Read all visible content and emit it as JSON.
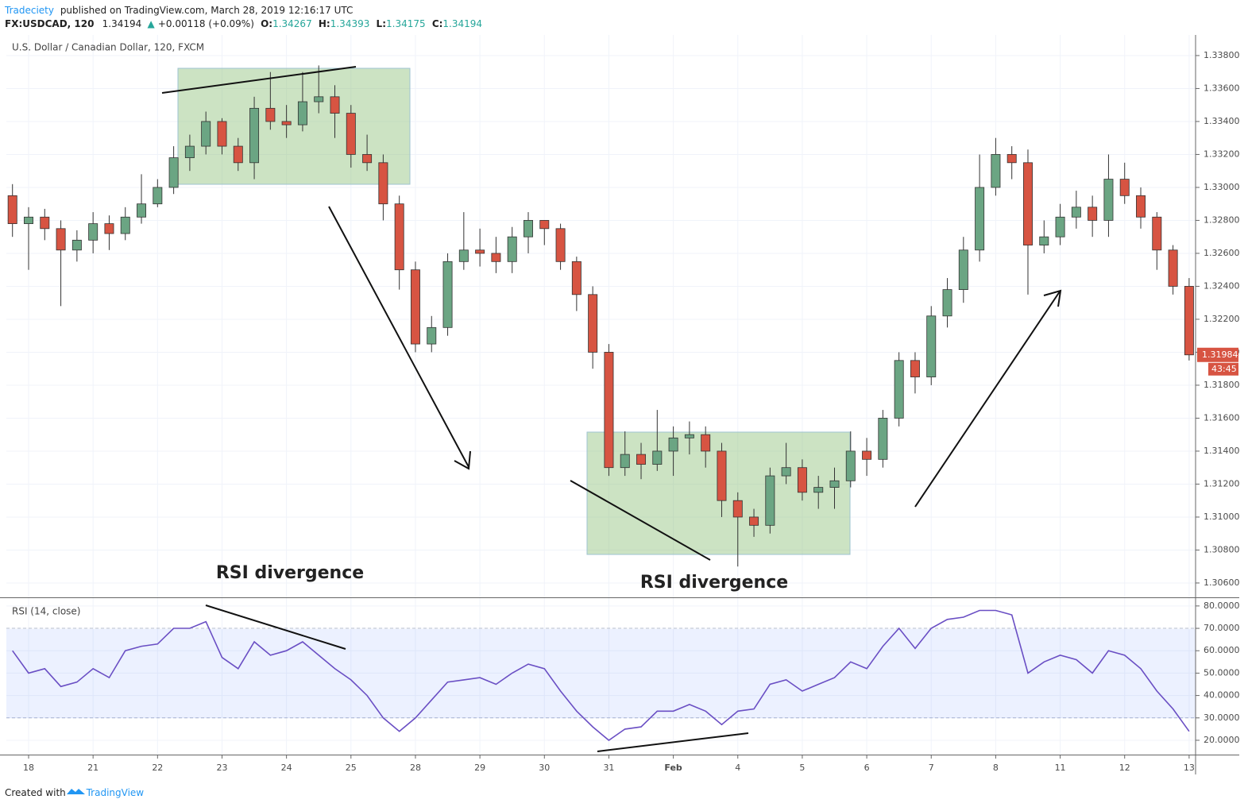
{
  "header": {
    "author": "Tradeciety",
    "published": "published on TradingView.com, March 28, 2019 12:16:17 UTC",
    "symbol": "FX:USDCAD, 120",
    "price": "1.34194",
    "arrow": "▲",
    "change": "+0.00118 (+0.09%)",
    "o_label": "O:",
    "o": "1.34267",
    "h_label": "H:",
    "h": "1.34393",
    "l_label": "L:",
    "l": "1.34175",
    "c_label": "C:",
    "c": "1.34194"
  },
  "footer": {
    "created": "Created with",
    "brand": "TradingView"
  },
  "chart_data": [
    {
      "type": "candlestick",
      "title": "U.S. Dollar / Canadian Dollar, 120, FXCM",
      "up_color": "#6ba583",
      "down_color": "#d75442",
      "grid": true,
      "annotations": [
        "RSI divergence",
        "RSI divergence"
      ],
      "countdown": "43:45",
      "open": [
        1.3295,
        1.3278,
        1.3282,
        1.3275,
        1.3262,
        1.3268,
        1.3278,
        1.3272,
        1.3282,
        1.329,
        1.33,
        1.3318,
        1.3325,
        1.334,
        1.3325,
        1.3315,
        1.3348,
        1.334,
        1.3338,
        1.3352,
        1.3355,
        1.3345,
        1.332,
        1.3315,
        1.329,
        1.325,
        1.3205,
        1.3215,
        1.3255,
        1.3262,
        1.326,
        1.3255,
        1.327,
        1.328,
        1.3275,
        1.3255,
        1.3235,
        1.32,
        1.313,
        1.3138,
        1.3132,
        1.314,
        1.3148,
        1.315,
        1.314,
        1.311,
        1.31,
        1.3095,
        1.3125,
        1.313,
        1.3115,
        1.3118,
        1.3122,
        1.314,
        1.3135,
        1.316,
        1.3195,
        1.3185,
        1.3222,
        1.3238,
        1.3262,
        1.33,
        1.332,
        1.3315,
        1.3265,
        1.327,
        1.3282,
        1.3288,
        1.328,
        1.3305,
        1.3295,
        1.3282,
        1.3262,
        1.324
      ],
      "high": [
        1.3302,
        1.3288,
        1.3287,
        1.328,
        1.3274,
        1.3285,
        1.3283,
        1.3288,
        1.3308,
        1.3305,
        1.3325,
        1.3332,
        1.3346,
        1.3342,
        1.333,
        1.3355,
        1.337,
        1.335,
        1.337,
        1.3374,
        1.3362,
        1.335,
        1.3332,
        1.332,
        1.3295,
        1.3255,
        1.3222,
        1.326,
        1.3285,
        1.3275,
        1.327,
        1.3276,
        1.3285,
        1.328,
        1.3278,
        1.3258,
        1.324,
        1.3205,
        1.3152,
        1.3145,
        1.3165,
        1.3155,
        1.3158,
        1.3155,
        1.3145,
        1.3115,
        1.3105,
        1.313,
        1.3145,
        1.3135,
        1.3125,
        1.313,
        1.3152,
        1.3148,
        1.3165,
        1.32,
        1.32,
        1.3228,
        1.3245,
        1.327,
        1.332,
        1.333,
        1.3325,
        1.3323,
        1.328,
        1.329,
        1.3298,
        1.3295,
        1.332,
        1.3315,
        1.33,
        1.3285,
        1.3265,
        1.3245
      ],
      "low": [
        1.327,
        1.325,
        1.3268,
        1.3228,
        1.3255,
        1.326,
        1.3262,
        1.3268,
        1.3278,
        1.3288,
        1.3296,
        1.331,
        1.332,
        1.332,
        1.331,
        1.3305,
        1.3335,
        1.333,
        1.3334,
        1.3345,
        1.333,
        1.3312,
        1.331,
        1.328,
        1.3238,
        1.32,
        1.32,
        1.321,
        1.325,
        1.3252,
        1.3248,
        1.3248,
        1.326,
        1.3265,
        1.325,
        1.3225,
        1.319,
        1.3125,
        1.3125,
        1.3123,
        1.3128,
        1.3125,
        1.3138,
        1.313,
        1.31,
        1.307,
        1.3088,
        1.309,
        1.312,
        1.311,
        1.3105,
        1.3105,
        1.3118,
        1.3125,
        1.313,
        1.3155,
        1.3175,
        1.318,
        1.3215,
        1.323,
        1.3255,
        1.3295,
        1.3305,
        1.3235,
        1.326,
        1.3265,
        1.3275,
        1.327,
        1.327,
        1.329,
        1.3275,
        1.325,
        1.3235,
        1.3195
      ],
      "close": [
        1.3278,
        1.3282,
        1.3275,
        1.3262,
        1.3268,
        1.3278,
        1.3272,
        1.3282,
        1.329,
        1.33,
        1.3318,
        1.3325,
        1.334,
        1.3325,
        1.3315,
        1.3348,
        1.334,
        1.3338,
        1.3352,
        1.3355,
        1.3345,
        1.332,
        1.3315,
        1.329,
        1.325,
        1.3205,
        1.3215,
        1.3255,
        1.3262,
        1.326,
        1.3255,
        1.327,
        1.328,
        1.3275,
        1.3255,
        1.3235,
        1.32,
        1.313,
        1.3138,
        1.3132,
        1.314,
        1.3148,
        1.315,
        1.314,
        1.311,
        1.31,
        1.3095,
        1.3125,
        1.313,
        1.3115,
        1.3118,
        1.3122,
        1.314,
        1.3135,
        1.316,
        1.3195,
        1.3185,
        1.3222,
        1.3238,
        1.3262,
        1.33,
        1.332,
        1.3315,
        1.3265,
        1.327,
        1.3282,
        1.3288,
        1.328,
        1.3305,
        1.3295,
        1.3282,
        1.3262,
        1.324,
        1.31984
      ],
      "xlim": [
        -0.38,
        73.4
      ],
      "xticks": [
        {
          "value": 1,
          "label": "18"
        },
        {
          "value": 5,
          "label": "21"
        },
        {
          "value": 9,
          "label": "22"
        },
        {
          "value": 13,
          "label": "23"
        },
        {
          "value": 17,
          "label": "24"
        },
        {
          "value": 21,
          "label": "25"
        },
        {
          "value": 25,
          "label": "28"
        },
        {
          "value": 29,
          "label": "29"
        },
        {
          "value": 33,
          "label": "30"
        },
        {
          "value": 37,
          "label": "31"
        },
        {
          "value": 41,
          "label": "Feb"
        },
        {
          "value": 45,
          "label": "4"
        },
        {
          "value": 49,
          "label": "5"
        },
        {
          "value": 53,
          "label": "6"
        },
        {
          "value": 57,
          "label": "7"
        },
        {
          "value": 61,
          "label": "8"
        },
        {
          "value": 65,
          "label": "11"
        },
        {
          "value": 69,
          "label": "12"
        },
        {
          "value": 73,
          "label": "13"
        }
      ],
      "ylim": [
        1.30513,
        1.33925
      ],
      "yticks": [
        {
          "value": 1.306,
          "label": "1.30600"
        },
        {
          "value": 1.308,
          "label": "1.30800"
        },
        {
          "value": 1.31,
          "label": "1.31000"
        },
        {
          "value": 1.312,
          "label": "1.31200"
        },
        {
          "value": 1.314,
          "label": "1.31400"
        },
        {
          "value": 1.316,
          "label": "1.31600"
        },
        {
          "value": 1.318,
          "label": "1.31800"
        },
        {
          "value": 1.32,
          "label": "1.32000"
        },
        {
          "value": 1.322,
          "label": "1.32200"
        },
        {
          "value": 1.324,
          "label": "1.32400"
        },
        {
          "value": 1.326,
          "label": "1.32600"
        },
        {
          "value": 1.328,
          "label": "1.32800"
        },
        {
          "value": 1.33,
          "label": "1.33000"
        },
        {
          "value": 1.332,
          "label": "1.33200"
        },
        {
          "value": 1.334,
          "label": "1.33400"
        },
        {
          "value": 1.336,
          "label": "1.33600"
        },
        {
          "value": 1.338,
          "label": "1.33800"
        }
      ]
    },
    {
      "type": "line",
      "title": "RSI (14, close)",
      "color": "#6a4fc4",
      "band": [
        30,
        70
      ],
      "values": [
        60,
        50,
        52,
        44,
        46,
        52,
        48,
        60,
        62,
        63,
        70,
        70,
        73,
        57,
        52,
        64,
        58,
        60,
        64,
        58,
        52,
        47,
        40,
        30,
        24,
        30,
        38,
        46,
        47,
        48,
        45,
        50,
        54,
        52,
        42,
        33,
        26,
        20,
        25,
        26,
        33,
        33,
        36,
        33,
        27,
        33,
        34,
        45,
        47,
        42,
        45,
        48,
        55,
        52,
        62,
        70,
        61,
        70,
        74,
        75,
        78,
        78,
        76,
        50,
        55,
        58,
        56,
        50,
        60,
        58,
        52,
        42,
        34,
        24
      ],
      "ylim": [
        13.6,
        83.5
      ],
      "yticks": [
        {
          "value": 20,
          "label": "20.0000"
        },
        {
          "value": 30,
          "label": "30.0000"
        },
        {
          "value": 40,
          "label": "40.0000"
        },
        {
          "value": 50,
          "label": "50.0000"
        },
        {
          "value": 60,
          "label": "60.0000"
        },
        {
          "value": 70,
          "label": "70.0000"
        },
        {
          "value": 80,
          "label": "80.0000"
        }
      ]
    }
  ]
}
